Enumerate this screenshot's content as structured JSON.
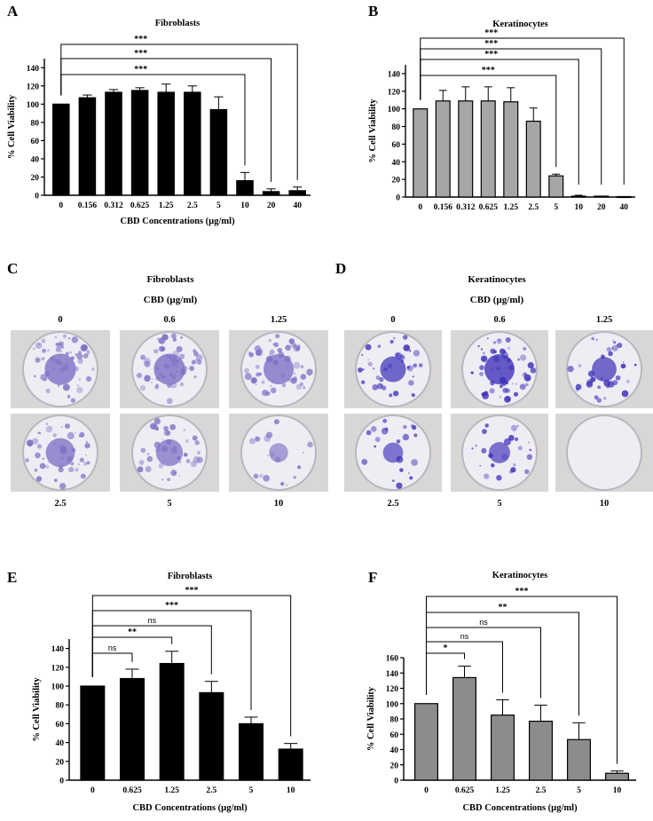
{
  "panel_letters": [
    "A",
    "B",
    "C",
    "D",
    "E",
    "F"
  ],
  "chart_data": [
    {
      "id": "A",
      "type": "bar",
      "title": "Fibroblasts",
      "categories": [
        "0",
        "0.156",
        "0.312",
        "0.625",
        "1.25",
        "2.5",
        "5",
        "10",
        "20",
        "40"
      ],
      "values": [
        100,
        107,
        113,
        115,
        113,
        113,
        94,
        16,
        4,
        5
      ],
      "errors": [
        0,
        3,
        3,
        3,
        9,
        7,
        14,
        9,
        3,
        4
      ],
      "ylabel": "% Cell Viability",
      "xlabel": "CBD Concentrations (µg/ml)",
      "ylim": [
        0,
        150
      ],
      "yticks": [
        "0",
        "20",
        "40",
        "60",
        "80",
        "100",
        "120",
        "140"
      ],
      "bar_color": "#000000",
      "comparisons": [
        {
          "vs": "10",
          "label": "***"
        },
        {
          "vs": "20",
          "label": "***"
        },
        {
          "vs": "40",
          "label": "***"
        }
      ]
    },
    {
      "id": "B",
      "type": "bar",
      "title": "Keratinocytes",
      "categories": [
        "0",
        "0.156",
        "0.312",
        "0.625",
        "1.25",
        "2.5",
        "5",
        "10",
        "20",
        "40"
      ],
      "values": [
        100,
        109,
        109,
        109,
        108,
        86,
        24,
        1,
        1,
        0.5
      ],
      "errors": [
        0,
        12,
        16,
        16,
        16,
        15,
        2,
        1,
        0,
        0
      ],
      "ylabel": "% Cell Viability",
      "xlabel": "",
      "ylim": [
        0,
        150
      ],
      "yticks": [
        "0",
        "20",
        "40",
        "60",
        "80",
        "100",
        "120",
        "140"
      ],
      "bar_color": "#a6a6a6",
      "comparisons": [
        {
          "vs": "5",
          "label": "***"
        },
        {
          "vs": "10",
          "label": "***"
        },
        {
          "vs": "20",
          "label": "***"
        },
        {
          "vs": "40",
          "label": "***"
        }
      ]
    },
    {
      "id": "E",
      "type": "bar",
      "title": "Fibroblasts",
      "categories": [
        "0",
        "0.625",
        "1.25",
        "2.5",
        "5",
        "10"
      ],
      "values": [
        100,
        108,
        124,
        93,
        60,
        33
      ],
      "errors": [
        0,
        10,
        13,
        12,
        7,
        6
      ],
      "ylabel": "% Cell Viability",
      "xlabel": "CBD Concentrations (µg/ml)",
      "ylim": [
        0,
        150
      ],
      "yticks": [
        "0",
        "20",
        "40",
        "60",
        "80",
        "100",
        "120",
        "140"
      ],
      "bar_color": "#000000",
      "comparisons": [
        {
          "vs": "0.625",
          "label": "ns"
        },
        {
          "vs": "1.25",
          "label": "**"
        },
        {
          "vs": "2.5",
          "label": "ns"
        },
        {
          "vs": "5",
          "label": "***"
        },
        {
          "vs": "10",
          "label": "***"
        }
      ]
    },
    {
      "id": "F",
      "type": "bar",
      "title": "Keratinocytes",
      "categories": [
        "0",
        "0.625",
        "1.25",
        "2.5",
        "5",
        "10"
      ],
      "values": [
        100,
        134,
        85,
        77,
        53,
        9
      ],
      "errors": [
        0,
        15,
        20,
        21,
        22,
        3
      ],
      "ylabel": "% Cell Viability",
      "xlabel": "CBD Concentrations (µg/ml)",
      "ylim": [
        0,
        160
      ],
      "yticks": [
        "0",
        "20",
        "40",
        "60",
        "80",
        "100",
        "120",
        "140",
        "160"
      ],
      "bar_color": "#8c8c8c",
      "comparisons": [
        {
          "vs": "0.625",
          "label": "*"
        },
        {
          "vs": "1.25",
          "label": "ns"
        },
        {
          "vs": "2.5",
          "label": "ns"
        },
        {
          "vs": "5",
          "label": "**"
        },
        {
          "vs": "10",
          "label": "***"
        }
      ]
    }
  ],
  "photo_panels": [
    {
      "id": "C",
      "title": "Fibroblasts",
      "subtitle": "CBD (µg/ml)",
      "top_labels": [
        "0",
        "0.6",
        "1.25"
      ],
      "bottom_labels": [
        "2.5",
        "5",
        "10"
      ],
      "stain_color": "#7b6fc4",
      "density": [
        0.8,
        0.8,
        0.75,
        0.7,
        0.6,
        0.25
      ]
    },
    {
      "id": "D",
      "title": "Keratinocytes",
      "subtitle": "CBD (µg/ml)",
      "top_labels": [
        "0",
        "0.6",
        "1.25"
      ],
      "bottom_labels": [
        "2.5",
        "5",
        "10"
      ],
      "stain_color": "#3c2fb8",
      "density": [
        0.55,
        0.75,
        0.5,
        0.3,
        0.35,
        0.0
      ]
    }
  ]
}
